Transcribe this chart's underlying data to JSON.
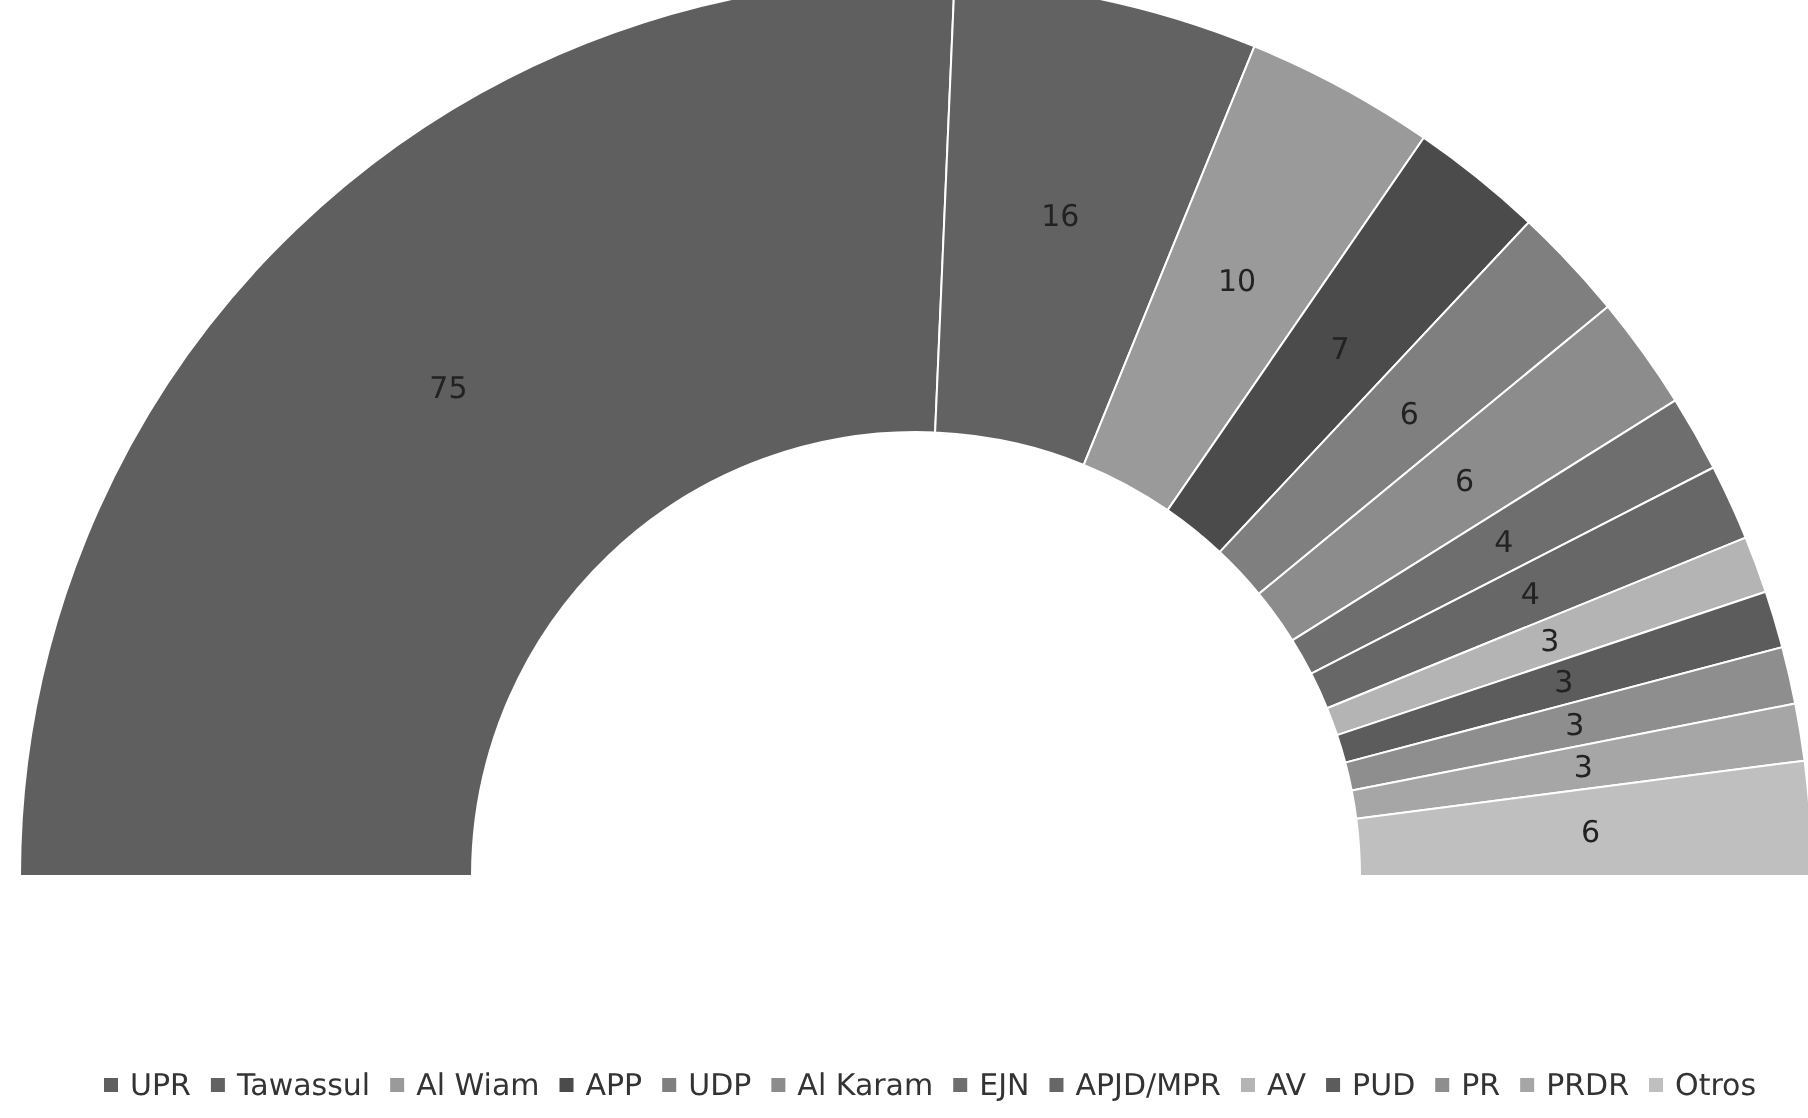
{
  "chart_data": {
    "type": "donut",
    "categories": [
      "UPR",
      "Tawassul",
      "Al Wiam",
      "APP",
      "UDP",
      "Al Karam",
      "EJN",
      "APJD/MPR",
      "AV",
      "PUD",
      "PR",
      "PRDR",
      "Otros"
    ],
    "values": [
      75,
      16,
      10,
      7,
      6,
      6,
      4,
      4,
      3,
      3,
      3,
      3,
      6
    ],
    "colors": [
      "#5f5f5f",
      "#626262",
      "#9a9a9a",
      "#4b4b4b",
      "#7f7f7f",
      "#8c8c8c",
      "#6e6e6e",
      "#676767",
      "#b4b4b4",
      "#5c5c5c",
      "#8e8e8e",
      "#a6a6a6",
      "#bfbfbf"
    ],
    "data_labels": true,
    "legend": "bottom"
  }
}
